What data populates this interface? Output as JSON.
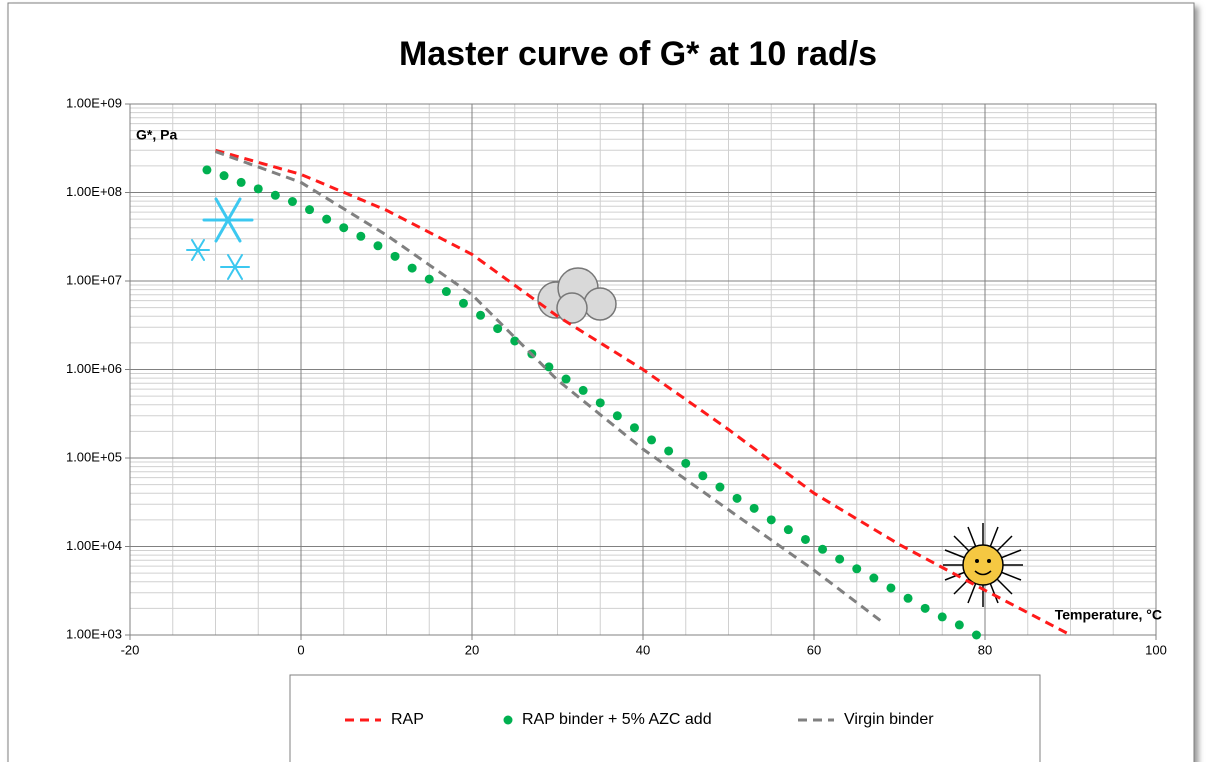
{
  "chart_data": {
    "type": "line",
    "title": "Master curve of G* at 10 rad/s",
    "y_label": "G*, Pa",
    "x_label": "Temperature, °C",
    "ylog": true,
    "grid": true,
    "legend": "bottom",
    "xlim": [
      -20,
      100
    ],
    "xticks": [
      -20,
      0,
      20,
      40,
      60,
      80,
      100
    ],
    "ylim": [
      1000,
      1000000000
    ],
    "yticks": [
      {
        "value": 1000,
        "label": "1.00E+03"
      },
      {
        "value": 10000,
        "label": "1.00E+04"
      },
      {
        "value": 100000,
        "label": "1.00E+05"
      },
      {
        "value": 1000000,
        "label": "1.00E+06"
      },
      {
        "value": 10000000,
        "label": "1.00E+07"
      },
      {
        "value": 100000000,
        "label": "1.00E+08"
      },
      {
        "value": 1000000000,
        "label": "1.00E+09"
      }
    ],
    "series": [
      {
        "name": "RAP",
        "color": "#ff1a1a",
        "style": "dashed",
        "x": [
          -10,
          0,
          10,
          20,
          30,
          40,
          50,
          60,
          70,
          80,
          90
        ],
        "values": [
          300000000,
          160000000,
          63000000,
          20000000,
          4000000,
          1000000,
          210000,
          40000,
          10500,
          3200,
          1000
        ]
      },
      {
        "name": "RAP binder + 5% AZC add",
        "color": "#00b050",
        "style": "markers",
        "x": [
          -11,
          -9,
          -7,
          -5,
          -3,
          -1,
          1,
          3,
          5,
          7,
          9,
          11,
          13,
          15,
          17,
          19,
          21,
          23,
          25,
          27,
          29,
          31,
          33,
          35,
          37,
          39,
          41,
          43,
          45,
          47,
          49,
          51,
          53,
          55,
          57,
          59,
          61,
          63,
          65,
          67,
          69,
          71,
          73,
          75,
          77,
          79
        ],
        "values": [
          180000000,
          155000000,
          130000000,
          110000000,
          93000000,
          79000000,
          64000000,
          50000000,
          40000000,
          32000000,
          25000000,
          19000000,
          14000000,
          10500000,
          7600000,
          5600000,
          4100000,
          2900000,
          2100000,
          1500000,
          1070000,
          780000,
          580000,
          420000,
          300000,
          220000,
          160000,
          120000,
          87000,
          63000,
          47000,
          35000,
          27000,
          20000,
          15500,
          12000,
          9300,
          7200,
          5600,
          4400,
          3400,
          2600,
          2000,
          1600,
          1300,
          1000
        ]
      },
      {
        "name": "Virgin binder",
        "color": "#808080",
        "style": "dashed",
        "x": [
          -10,
          0,
          10,
          20,
          30,
          40,
          50,
          60,
          68
        ],
        "values": [
          290000000,
          130000000,
          33000000,
          7000000,
          760000,
          126000,
          26000,
          5400,
          1400
        ]
      }
    ]
  }
}
